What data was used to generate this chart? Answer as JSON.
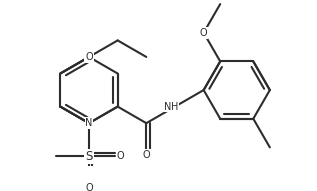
{
  "bg_color": "#ffffff",
  "line_color": "#2d2d2d",
  "line_width": 1.5,
  "font_size": 7.0,
  "figsize": [
    3.17,
    1.91
  ],
  "dpi": 100,
  "xlim": [
    0.0,
    7.2
  ],
  "ylim": [
    -1.8,
    3.2
  ]
}
